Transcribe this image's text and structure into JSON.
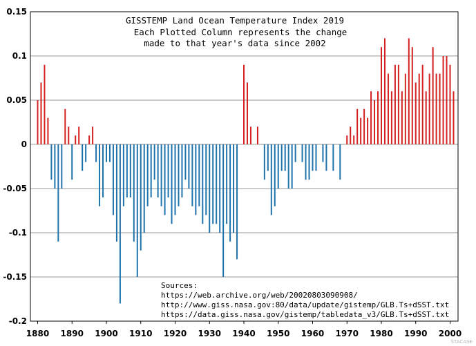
{
  "chart_data": {
    "type": "bar",
    "title": [
      "GISSTEMP Land Ocean Temperature Index 2019",
      "Each Plotted Column represents the change",
      "made to that year's data since 2002"
    ],
    "xlabel": "",
    "ylabel": "",
    "xlim": [
      1880,
      2002
    ],
    "ylim": [
      -0.2,
      0.15
    ],
    "grid": true,
    "x_ticks": [
      "1880",
      "1890",
      "1900",
      "1910",
      "1920",
      "1930",
      "1940",
      "1950",
      "1960",
      "1970",
      "1980",
      "1990",
      "2000"
    ],
    "y_ticks": [
      "0.15",
      "0.1",
      "0.05",
      "0",
      "-0.05",
      "-0.1",
      "-0.15",
      "-0.2"
    ],
    "colors": {
      "positive": "#d42020",
      "negative": "#1f73ad",
      "grid": "#9a9a9a",
      "axis": "#000000"
    },
    "x": [
      1880,
      1881,
      1882,
      1883,
      1884,
      1885,
      1886,
      1887,
      1888,
      1889,
      1890,
      1891,
      1892,
      1893,
      1894,
      1895,
      1896,
      1897,
      1898,
      1899,
      1900,
      1901,
      1902,
      1903,
      1904,
      1905,
      1906,
      1907,
      1908,
      1909,
      1910,
      1911,
      1912,
      1913,
      1914,
      1915,
      1916,
      1917,
      1918,
      1919,
      1920,
      1921,
      1922,
      1923,
      1924,
      1925,
      1926,
      1927,
      1928,
      1929,
      1930,
      1931,
      1932,
      1933,
      1934,
      1935,
      1936,
      1937,
      1938,
      1939,
      1940,
      1941,
      1942,
      1943,
      1944,
      1945,
      1946,
      1947,
      1948,
      1949,
      1950,
      1951,
      1952,
      1953,
      1954,
      1955,
      1956,
      1957,
      1958,
      1959,
      1960,
      1961,
      1962,
      1963,
      1964,
      1965,
      1966,
      1967,
      1968,
      1969,
      1970,
      1971,
      1972,
      1973,
      1974,
      1975,
      1976,
      1977,
      1978,
      1979,
      1980,
      1981,
      1982,
      1983,
      1984,
      1985,
      1986,
      1987,
      1988,
      1989,
      1990,
      1991,
      1992,
      1993,
      1994,
      1995,
      1996,
      1997,
      1998,
      1999,
      2000,
      2001,
      2002
    ],
    "values": [
      0.05,
      0.07,
      0.09,
      0.03,
      -0.04,
      -0.05,
      -0.11,
      -0.05,
      0.04,
      0.02,
      -0.04,
      0.01,
      0.02,
      -0.03,
      -0.02,
      0.01,
      0.02,
      -0.02,
      -0.07,
      -0.06,
      -0.02,
      -0.02,
      -0.08,
      -0.11,
      -0.18,
      -0.07,
      -0.06,
      -0.06,
      -0.11,
      -0.15,
      -0.12,
      -0.1,
      -0.07,
      -0.06,
      -0.04,
      -0.06,
      -0.07,
      -0.08,
      -0.06,
      -0.09,
      -0.08,
      -0.07,
      -0.06,
      -0.04,
      -0.05,
      -0.07,
      -0.08,
      -0.07,
      -0.09,
      -0.08,
      -0.1,
      -0.09,
      -0.09,
      -0.1,
      -0.15,
      -0.09,
      -0.11,
      -0.1,
      -0.13,
      0.0,
      0.09,
      0.07,
      0.02,
      0.0,
      0.02,
      0.0,
      -0.04,
      -0.03,
      -0.08,
      -0.07,
      -0.05,
      -0.03,
      -0.03,
      -0.05,
      -0.05,
      -0.02,
      0.0,
      -0.02,
      -0.04,
      -0.04,
      -0.03,
      -0.03,
      0.0,
      -0.02,
      -0.03,
      0.0,
      -0.03,
      0.0,
      -0.04,
      0.0,
      0.01,
      0.02,
      0.01,
      0.04,
      0.03,
      0.04,
      0.03,
      0.06,
      0.05,
      0.06,
      0.11,
      0.12,
      0.08,
      0.06,
      0.09,
      0.09,
      0.06,
      0.08,
      0.12,
      0.11,
      0.07,
      0.08,
      0.09,
      0.06,
      0.08,
      0.11,
      0.08,
      0.08,
      0.1,
      0.1,
      0.09,
      0.06,
      0.0
    ],
    "annotations": {
      "sources_heading": "Sources:",
      "sources": [
        "https://web.archive.org/web/20020803090908/",
        "http://www.giss.nasa.gov:80/data/update/gistemp/GLB.Ts+dSST.txt",
        "https://data.giss.nasa.gov/gistemp/tabledata_v3/GLB.Ts+dSST.txt"
      ],
      "watermark": "STACASE"
    }
  }
}
